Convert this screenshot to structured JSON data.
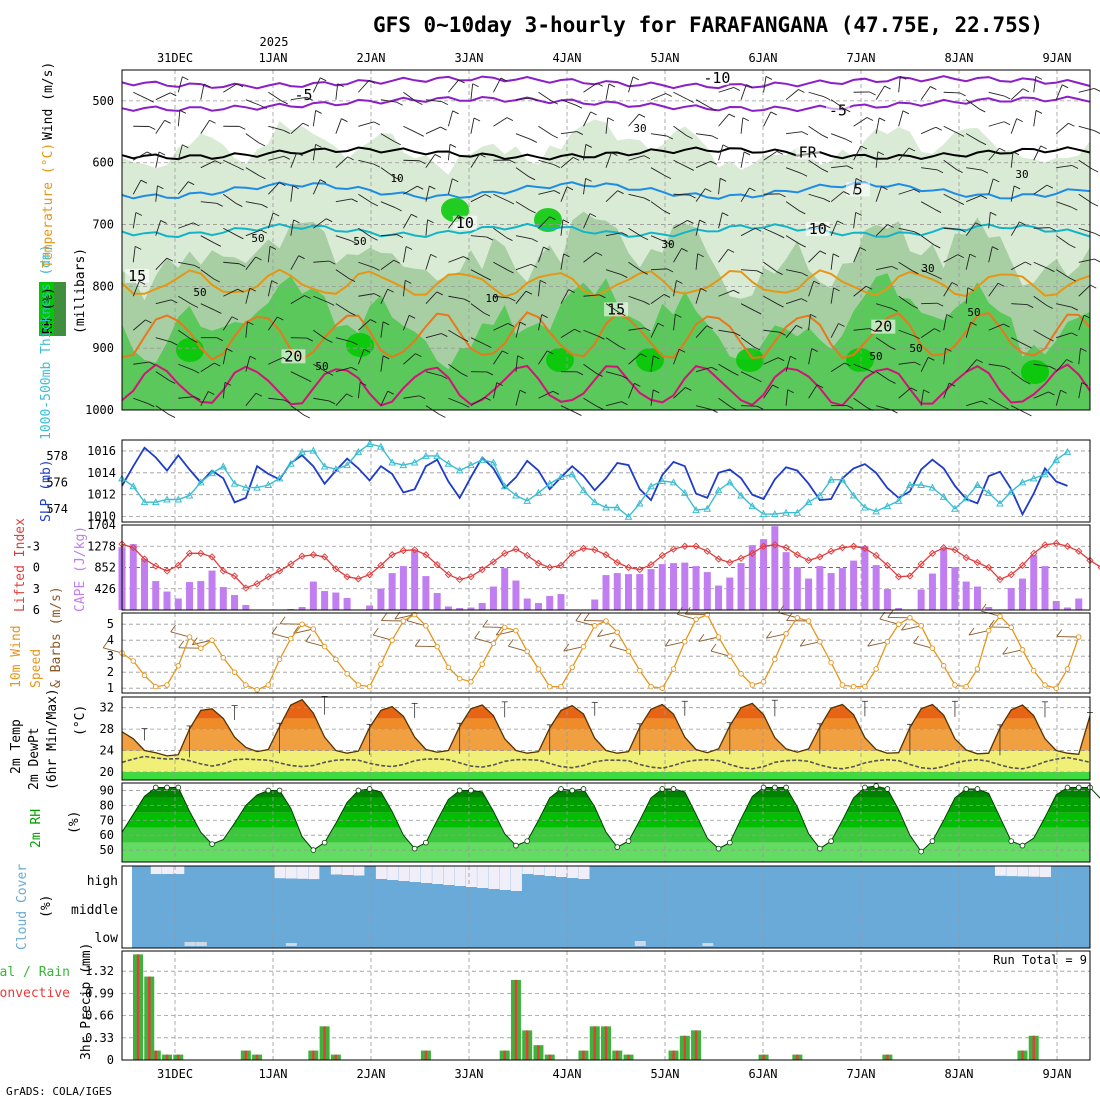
{
  "colors": {
    "rh_dark": "#3f8f3f",
    "rh_light": "#d9ebd5",
    "rh_mid": "#a8cfa3",
    "rh_bright": "#00c800",
    "temp_purple": "#8c1ec8",
    "temp_blue": "#1e8ce6",
    "temp_cyan": "#14b4c8",
    "temp_orange": "#e69614",
    "temp_orange2": "#e6781e",
    "temp_magenta": "#d2147a",
    "slp": "#1e3cc8",
    "thick": "#3cbed2",
    "li": "#e03c3c",
    "cape": "#c07ef0",
    "wind": "#e6961e",
    "barbs": "#8b5a2b",
    "t2m": "#f08c00",
    "dewpt": "#555555",
    "rh2m": "#00a000",
    "cloud": "#6aaad8",
    "cloud_white": "#f0eef8",
    "precip_total": "#3cb43c",
    "precip_conv": "#e63c3c"
  },
  "chart_data": [
    {
      "type": "heatmap",
      "panel": "upper-air",
      "title": "GFS 0~10day 3-hourly for FARAFANGANA (47.75E, 22.75S)",
      "year_label": "2025",
      "date_labels": [
        "31DEC",
        "1JAN",
        "2JAN",
        "3JAN",
        "4JAN",
        "5JAN",
        "6JAN",
        "7JAN",
        "8JAN",
        "9JAN"
      ],
      "ylabel_parts": [
        "RH (%)",
        "Temperature (°C)",
        "Wind (m/s)"
      ],
      "yaxis_label": "(millibars)",
      "y_ticks": [
        500,
        600,
        700,
        800,
        900,
        1000
      ],
      "ylim": [
        1000,
        450
      ],
      "contour_labels": [
        {
          "text": "-5",
          "color": "temp_purple",
          "x": 1.8,
          "y": 495
        },
        {
          "text": "-10",
          "color": "temp_purple",
          "x": 5.9,
          "y": 468
        },
        {
          "text": "-5",
          "color": "temp_purple",
          "x": 7.1,
          "y": 520
        },
        {
          "text": "FR",
          "color": "#000000",
          "x": 6.8,
          "y": 588
        },
        {
          "text": "5",
          "color": "temp_blue",
          "x": 7.3,
          "y": 648
        },
        {
          "text": "10",
          "color": "temp_cyan",
          "x": 3.4,
          "y": 702
        },
        {
          "text": "10",
          "color": "temp_cyan",
          "x": 6.9,
          "y": 712
        },
        {
          "text": "15",
          "color": "temp_orange",
          "x": 0.15,
          "y": 788
        },
        {
          "text": "15",
          "color": "temp_orange",
          "x": 4.9,
          "y": 842
        },
        {
          "text": "20",
          "color": "temp_orange2",
          "x": 1.7,
          "y": 918
        },
        {
          "text": "20",
          "color": "temp_orange2",
          "x": 7.55,
          "y": 870
        }
      ],
      "rh_labels": [
        "30",
        "10",
        "50",
        "50",
        "10",
        "50",
        "30",
        "50",
        "30",
        "50",
        "30",
        "50",
        "50"
      ]
    },
    {
      "type": "line",
      "panel": "slp-thickness",
      "ylabel_left": "1000-500mb Thickness (dm)",
      "ylabel_right": "SLP (mb)",
      "y_ticks_left": [
        574,
        576,
        578
      ],
      "y_ticks_right": [
        1010,
        1012,
        1014,
        1016
      ],
      "series": [
        {
          "name": "SLP",
          "axis": "right",
          "values": [
            1012.8,
            1014.6,
            1016.3,
            1015.4,
            1014.2,
            1015.6,
            1014.3,
            1013.1,
            1014.2,
            1013.5,
            1011.3,
            1011.7,
            1014.6,
            1013.9,
            1013.4,
            1014.9,
            1015.6,
            1014.6,
            1013.0,
            1014.2,
            1015.3,
            1014.4,
            1013.3,
            1014.6,
            1013.9,
            1012.2,
            1012.5,
            1014.6,
            1015.2,
            1013.2,
            1011.7,
            1013.6,
            1015.4,
            1014.4,
            1012.6,
            1013.6,
            1015.1,
            1014.2,
            1012.5,
            1013.6,
            1014.6,
            1013.7,
            1012.4,
            1013.5,
            1014.9,
            1014.7,
            1012.5,
            1011.5,
            1013.8,
            1015.0,
            1014.6,
            1012.1,
            1011.7,
            1014.0,
            1014.3,
            1013.5,
            1012.0,
            1011.6,
            1013.4,
            1014.5,
            1014.2,
            1013.0,
            1011.5,
            1011.6,
            1013.5,
            1014.4,
            1014.8,
            1014.0,
            1012.6,
            1011.7,
            1012.3,
            1014.3,
            1015.2,
            1014.4,
            1012.8,
            1011.6,
            1011.2,
            1013.7,
            1014.1,
            1012.5,
            1010.2,
            1012.1,
            1014.4,
            1013.2,
            1012.8
          ]
        },
        {
          "name": "Thickness",
          "axis": "left",
          "values": [
            576.3,
            575.7,
            574.5,
            574.5,
            574.7,
            574.7,
            575.0,
            576.0,
            576.7,
            577.2,
            575.9,
            575.6,
            575.6,
            575.8,
            576.3,
            577.4,
            578.3,
            578.4,
            577.2,
            577.0,
            577.3,
            578.3,
            578.9,
            578.7,
            577.5,
            577.3,
            577.5,
            578.0,
            578.0,
            577.4,
            576.9,
            577.3,
            577.7,
            577.5,
            575.7,
            575.0,
            574.6,
            575.2,
            575.9,
            576.4,
            576.6,
            575.4,
            574.5,
            574.1,
            574.1,
            573.4,
            574.4,
            575.7,
            576.1,
            576.0,
            575.2,
            573.9,
            574.0,
            575.4,
            576.0,
            575.0,
            574.2,
            573.6,
            573.6,
            573.7,
            573.7,
            574.5,
            575.0,
            576.2,
            576.2,
            575.0,
            574.1,
            573.8,
            574.2,
            574.6,
            575.8,
            575.8,
            575.6,
            574.9,
            574.0,
            574.8,
            575.8,
            575.2,
            574.4,
            575.3,
            576.0,
            576.3,
            576.6,
            577.7,
            578.3
          ]
        }
      ]
    },
    {
      "type": "bar",
      "panel": "cape-li",
      "ylabel_left": "Lifted Index",
      "ylabel_right": "CAPE (J/kg)",
      "y_ticks_left": [
        -3,
        0,
        3,
        6
      ],
      "y_ticks_right": [
        426,
        852,
        1278,
        1704
      ],
      "series": [
        {
          "name": "CAPE",
          "type": "bar",
          "values": [
            1260,
            1320,
            1020,
            580,
            370,
            230,
            560,
            580,
            790,
            460,
            300,
            100,
            0,
            0,
            0,
            20,
            60,
            570,
            380,
            350,
            240,
            0,
            90,
            430,
            740,
            880,
            1200,
            680,
            340,
            70,
            40,
            50,
            140,
            470,
            840,
            590,
            230,
            140,
            280,
            320,
            0,
            0,
            210,
            700,
            740,
            720,
            720,
            820,
            920,
            940,
            950,
            880,
            760,
            490,
            650,
            940,
            1300,
            1420,
            1680,
            1160,
            860,
            630,
            880,
            740,
            840,
            990,
            1280,
            900,
            420,
            40,
            0,
            410,
            730,
            1230,
            860,
            570,
            470,
            60,
            0,
            440,
            630,
            1100,
            880,
            180,
            50,
            230
          ]
        },
        {
          "name": "Lifted Index",
          "type": "line",
          "values": [
            -3.3,
            -2.8,
            -1.2,
            -0.2,
            0.5,
            -0.3,
            -2.0,
            -2.0,
            -1.5,
            0.5,
            1.2,
            2.9,
            2.3,
            1.3,
            0.5,
            -0.5,
            -1.6,
            -1.8,
            -1.5,
            0.2,
            1.3,
            1.6,
            1.0,
            -0.3,
            -1.8,
            -2.4,
            -2.5,
            -1.8,
            -0.4,
            1.0,
            1.7,
            1.3,
            0.3,
            -0.8,
            -2.0,
            -2.6,
            -1.7,
            -0.6,
            0.0,
            -0.3,
            -2.0,
            -2.7,
            -2.5,
            -1.8,
            -0.7,
            0.0,
            0.3,
            -0.4,
            -1.7,
            -2.6,
            -3.0,
            -3.0,
            -2.3,
            -1.2,
            -0.7,
            -1.3,
            -2.0,
            -3.0,
            -3.2,
            -2.8,
            -1.8,
            -1.0,
            -1.5,
            -2.3,
            -2.8,
            -3.0,
            -2.7,
            -1.7,
            -0.3,
            1.3,
            1.2,
            -0.5,
            -2.0,
            -2.8,
            -2.5,
            -1.4,
            -0.7,
            0.0,
            1.7,
            1.0,
            -0.3,
            -2.0,
            -3.2,
            -3.4,
            -3.0,
            -2.3,
            -1.0,
            0.0,
            0.3,
            -0.5,
            -1.2
          ]
        }
      ]
    },
    {
      "type": "line",
      "panel": "wind",
      "ylabel": "10m Wind Speed & Barbs (m/s)",
      "ylabel_parts": [
        "10m Wind",
        "Speed",
        "& Barbs (m/s)"
      ],
      "y_ticks": [
        1,
        2,
        3,
        4,
        5
      ],
      "series": [
        {
          "name": "10m Wind Speed",
          "values": [
            3.2,
            2.7,
            1.8,
            1.1,
            1.2,
            2.4,
            4.2,
            3.5,
            4.0,
            2.9,
            2.0,
            1.2,
            0.9,
            1.2,
            2.8,
            4.1,
            5.0,
            4.7,
            3.6,
            2.8,
            1.9,
            1.2,
            1.1,
            2.5,
            4.0,
            5.2,
            5.6,
            4.9,
            3.6,
            2.3,
            1.6,
            1.4,
            2.5,
            3.8,
            4.8,
            4.6,
            3.3,
            2.2,
            1.1,
            1.1,
            2.3,
            3.6,
            4.9,
            5.2,
            4.5,
            3.3,
            2.1,
            1.1,
            1.0,
            2.2,
            3.9,
            5.3,
            5.6,
            4.2,
            3.0,
            1.9,
            1.2,
            1.4,
            2.8,
            4.4,
            5.4,
            5.2,
            3.9,
            2.6,
            1.2,
            1.1,
            1.1,
            2.2,
            3.9,
            5.0,
            5.4,
            4.9,
            3.5,
            2.4,
            1.2,
            1.1,
            2.2,
            4.6,
            5.5,
            4.8,
            3.4,
            2.1,
            1.2,
            1.0,
            2.2,
            4.2
          ]
        }
      ]
    },
    {
      "type": "area",
      "panel": "temperature",
      "ylabel_parts": [
        "2m Temp",
        "2m DewPt",
        "(6hr Min/Max)",
        "(°C)"
      ],
      "y_ticks": [
        20,
        24,
        28,
        32
      ],
      "series": [
        {
          "name": "2m Temp",
          "values": [
            27.5,
            26.2,
            24.0,
            23.6,
            23.0,
            23.2,
            28.0,
            31.5,
            31.8,
            30.0,
            26.5,
            24.6,
            23.8,
            24.2,
            28.5,
            32.5,
            33.5,
            31.0,
            26.5,
            24.0,
            23.5,
            23.9,
            28.3,
            31.5,
            32.2,
            30.4,
            26.5,
            24.2,
            23.7,
            24.0,
            28.5,
            31.8,
            32.5,
            30.5,
            26.2,
            24.0,
            23.5,
            23.8,
            28.2,
            31.5,
            32.4,
            30.8,
            26.3,
            24.0,
            23.5,
            23.8,
            28.4,
            31.7,
            32.6,
            30.8,
            26.5,
            24.2,
            23.6,
            24.3,
            28.6,
            32.0,
            32.8,
            30.7,
            26.4,
            24.3,
            23.7,
            24.3,
            28.4,
            31.9,
            32.6,
            30.7,
            26.4,
            24.2,
            23.5,
            23.6,
            28.3,
            31.8,
            32.6,
            30.6,
            26.2,
            24.1,
            23.4,
            23.5,
            28.2,
            31.6,
            32.5,
            30.5,
            26.2,
            24.0,
            23.5,
            23.3,
            30.5
          ]
        },
        {
          "name": "2m DewPt",
          "values": [
            21.8,
            22.4,
            22.9,
            22.6,
            22.4,
            22.5,
            22.1,
            21.5,
            21.1,
            21.5,
            22.3,
            22.4,
            22.3,
            22.2,
            21.7,
            21.2,
            21.0,
            21.2,
            21.8,
            22.2,
            22.3,
            22.2,
            21.6,
            21.2,
            21.0,
            21.4,
            22.1,
            22.4,
            22.4,
            22.3,
            21.7,
            21.1,
            20.9,
            21.3,
            22.0,
            22.3,
            22.3,
            22.2,
            21.6,
            21.0,
            20.8,
            21.2,
            21.9,
            22.2,
            22.2,
            22.1,
            21.4,
            20.9,
            20.7,
            21.2,
            21.9,
            22.2,
            22.3,
            22.1,
            21.4,
            20.8,
            20.6,
            21.0,
            21.8,
            22.1,
            22.2,
            22.0,
            21.3,
            20.8,
            20.6,
            21.0,
            21.7,
            22.1,
            22.3,
            22.1,
            21.4,
            20.8,
            20.6,
            21.0,
            21.7,
            22.1,
            22.3,
            22.0,
            21.3,
            20.8,
            20.6,
            21.1,
            21.9,
            22.4,
            22.7,
            22.3,
            21.8
          ]
        }
      ]
    },
    {
      "type": "area",
      "panel": "rh2m",
      "ylabel": "2m RH",
      "yunit": "(%)",
      "y_ticks": [
        50,
        60,
        70,
        80,
        90
      ],
      "series": [
        {
          "name": "2m RH",
          "values": [
            62,
            74,
            86,
            92,
            92,
            92,
            76,
            62,
            54,
            57,
            68,
            80,
            87,
            90,
            90,
            78,
            59,
            50,
            55,
            68,
            82,
            90,
            91,
            89,
            76,
            60,
            51,
            55,
            70,
            84,
            90,
            90,
            89,
            76,
            61,
            53,
            56,
            70,
            85,
            91,
            90,
            91,
            79,
            62,
            52,
            56,
            70,
            85,
            91,
            91,
            89,
            74,
            58,
            51,
            55,
            71,
            86,
            92,
            92,
            92,
            79,
            61,
            51,
            56,
            70,
            85,
            92,
            93,
            91,
            77,
            60,
            49,
            56,
            70,
            85,
            91,
            91,
            88,
            72,
            56,
            53,
            58,
            72,
            87,
            92,
            92,
            92,
            84,
            54
          ]
        }
      ]
    },
    {
      "type": "heatmap",
      "panel": "cloud",
      "ylabel": "Cloud Cover",
      "yunit": "(%)",
      "row_labels": [
        "high",
        "middle",
        "low"
      ]
    },
    {
      "type": "bar",
      "panel": "precip",
      "ylabel_parts": [
        "Total / Rain",
        "Convective",
        "3hr Precip (mm)"
      ],
      "y_ticks": [
        0,
        0.33,
        0.66,
        0.99,
        1.32
      ],
      "run_total_label": "Run Total = 9",
      "x_labels": [
        "31DEC",
        "1JAN",
        "2JAN",
        "3JAN",
        "4JAN",
        "5JAN",
        "6JAN",
        "7JAN",
        "8JAN",
        "9JAN"
      ],
      "series": [
        {
          "name": "Total",
          "values": [
            1.57,
            1.24,
            0,
            0.14,
            0.08,
            0.08,
            0,
            0,
            0,
            0,
            0,
            0.14,
            0.08,
            0,
            0,
            0,
            0,
            0.14,
            0.5,
            0.08,
            0,
            0,
            0,
            0,
            0,
            0,
            0,
            0.14,
            0,
            0,
            0,
            0,
            0,
            0,
            0.14,
            1.19,
            0.44,
            0.22,
            0.08,
            0,
            0,
            0.14,
            0.5,
            0.5,
            0.14,
            0.08,
            0,
            0,
            0,
            0.14,
            0.36,
            0.44,
            0,
            0,
            0,
            0,
            0,
            0.08,
            0,
            0,
            0.08,
            0,
            0,
            0,
            0,
            0,
            0,
            0,
            0.08,
            0,
            0,
            0,
            0,
            0,
            0,
            0,
            0,
            0,
            0,
            0,
            0.14,
            0.36,
            0,
            0,
            0,
            0
          ]
        }
      ]
    }
  ],
  "footer": {
    "credit": "GrADS: COLA/IGES"
  }
}
